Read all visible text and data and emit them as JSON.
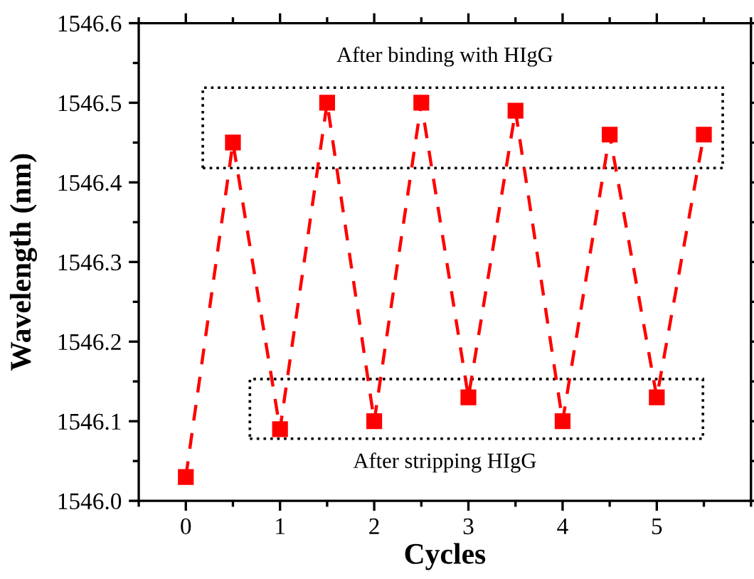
{
  "chart_data": {
    "type": "line",
    "xlabel": "Cycles",
    "ylabel": "Wavelength (nm)",
    "x": [
      0,
      0.5,
      1,
      1.5,
      2,
      2.5,
      3,
      3.5,
      4,
      4.5,
      5,
      5.5
    ],
    "series": [
      {
        "color": "#ff0000",
        "values": [
          1546.03,
          1546.45,
          1546.09,
          1546.5,
          1546.1,
          1546.5,
          1546.13,
          1546.49,
          1546.1,
          1546.46,
          1546.13,
          1546.46
        ]
      }
    ],
    "xlim": [
      -0.5,
      6
    ],
    "xticks": [
      0,
      1,
      2,
      3,
      4,
      5
    ],
    "ylim": [
      1546.0,
      1546.6
    ],
    "yticks": [
      {
        "value": 1546.0,
        "label": "1546.0"
      },
      {
        "value": 1546.1,
        "label": "1546.1"
      },
      {
        "value": 1546.2,
        "label": "1546.2"
      },
      {
        "value": 1546.3,
        "label": "1546.3"
      },
      {
        "value": 1546.4,
        "label": "1546.4"
      },
      {
        "value": 1546.5,
        "label": "1546.5"
      },
      {
        "value": 1546.6,
        "label": "1546.6"
      }
    ],
    "marker": "square",
    "line_style": "dashed",
    "grid": false,
    "legend": false,
    "annotations": [
      "After binding with HIgG",
      "After stripping HIgG"
    ]
  }
}
